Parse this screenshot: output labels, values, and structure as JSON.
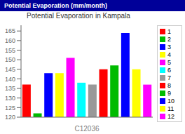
{
  "chart_data": {
    "type": "bar",
    "title": "Potential Evaporation in Kampala",
    "subtitle": "Potential Evaporation (mm/month)",
    "xlabel": "C12036",
    "categories": [
      "1",
      "2",
      "3",
      "4",
      "5",
      "6",
      "7",
      "8",
      "9",
      "10",
      "11",
      "12"
    ],
    "values": [
      137,
      122,
      143,
      143,
      151,
      138,
      137,
      145,
      147,
      164,
      145,
      137
    ],
    "colors": [
      "#ff0000",
      "#00bb00",
      "#0000ff",
      "#ffff00",
      "#ff00ff",
      "#00ffff",
      "#999999",
      "#ff0000",
      "#00bb00",
      "#0000ff",
      "#ffff00",
      "#ff00ff"
    ],
    "ylim": [
      120,
      168
    ],
    "yticks": [
      120,
      125,
      130,
      135,
      140,
      145,
      150,
      155,
      160,
      165
    ],
    "grid": false,
    "legend": "right",
    "tick_labels": "y"
  }
}
